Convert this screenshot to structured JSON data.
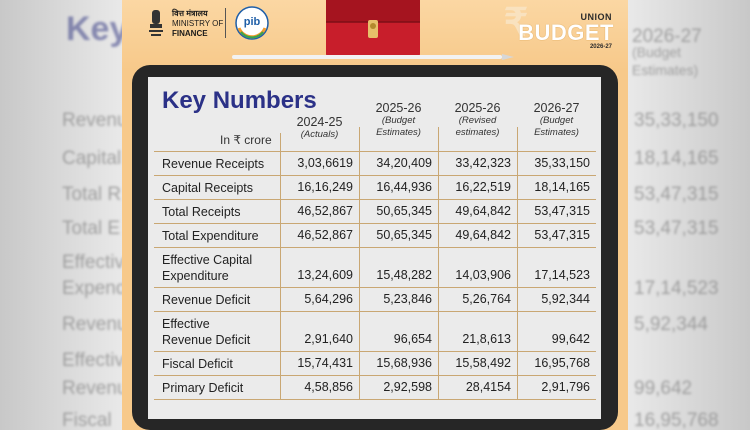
{
  "header": {
    "ministry_hindi": "वित्त मंत्रालय",
    "ministry_line1": "MINISTRY OF",
    "ministry_line2": "FINANCE",
    "pib_logo": "pib",
    "union": "UNION",
    "budget": "BUDGET",
    "budget_year": "2026-27"
  },
  "table": {
    "title": "Key Numbers",
    "unit": "In ₹ crore",
    "columns": [
      {
        "year": "2024-25",
        "sub": [
          "(Actuals)"
        ]
      },
      {
        "year": "2025-26",
        "sub": [
          "(Budget",
          "Estimates)"
        ]
      },
      {
        "year": "2025-26",
        "sub": [
          "(Revised",
          "estimates)"
        ]
      },
      {
        "year": "2026-27",
        "sub": [
          "(Budget",
          "Estimates)"
        ]
      }
    ],
    "rows": [
      {
        "label": [
          "Revenue Receipts"
        ],
        "values": [
          "3,03,6619",
          "34,20,409",
          "33,42,323",
          "35,33,150"
        ]
      },
      {
        "label": [
          "Capital Receipts"
        ],
        "values": [
          "16,16,249",
          "16,44,936",
          "16,22,519",
          "18,14,165"
        ]
      },
      {
        "label": [
          "Total Receipts"
        ],
        "values": [
          "46,52,867",
          "50,65,345",
          "49,64,842",
          "53,47,315"
        ]
      },
      {
        "label": [
          "Total Expenditure"
        ],
        "values": [
          "46,52,867",
          "50,65,345",
          "49,64,842",
          "53,47,315"
        ]
      },
      {
        "label": [
          "Effective Capital",
          "Expenditure"
        ],
        "values": [
          "13,24,609",
          "15,48,282",
          "14,03,906",
          "17,14,523"
        ]
      },
      {
        "label": [
          "Revenue Deficit"
        ],
        "values": [
          "5,64,296",
          "5,23,846",
          "5,26,764",
          "5,92,344"
        ]
      },
      {
        "label": [
          "Effective",
          "Revenue Deficit"
        ],
        "values": [
          "2,91,640",
          "96,654",
          "21,8,613",
          "99,642"
        ]
      },
      {
        "label": [
          "Fiscal Deficit"
        ],
        "values": [
          "15,74,431",
          "15,68,936",
          "15,58,492",
          "16,95,768"
        ]
      },
      {
        "label": [
          "Primary Deficit"
        ],
        "values": [
          "4,58,856",
          "2,92,598",
          "28,4154",
          "2,91,796"
        ]
      }
    ]
  },
  "background_ghost": {
    "left_title": "Key",
    "left_labels": [
      "Revenu",
      "Capital",
      "Total R",
      "Total E",
      "Effectiv",
      "Expend",
      "Revenu",
      "Effectiv",
      "Revenu",
      "Fiscal"
    ],
    "right_headers": [
      "2026-27",
      "(Budget",
      "Estimates)"
    ],
    "right_values": [
      "35,33,150",
      "18,14,165",
      "53,47,315",
      "53,47,315",
      "17,14,523",
      "5,92,344",
      "99,642",
      "16,95,768"
    ]
  },
  "colors": {
    "card_bg": "#f7c98a",
    "title_blue": "#2b3187",
    "briefcase_red": "#c81e2b",
    "grid_line": "#c9a773"
  }
}
